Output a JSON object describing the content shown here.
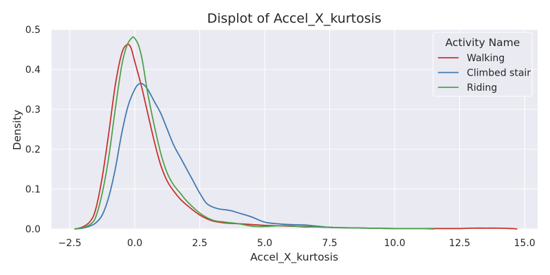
{
  "colors": {
    "plot_bg": "#EAEAF2",
    "grid": "#FFFFFF",
    "text": "#262626"
  },
  "chart_data": {
    "type": "line",
    "title": "Displot of Accel_X_kurtosis",
    "xlabel": "Accel_X_kurtosis",
    "ylabel": "Density",
    "xlim": [
      -3.2,
      15.5
    ],
    "ylim": [
      0,
      0.5
    ],
    "xticks": [
      -2.5,
      0.0,
      2.5,
      5.0,
      7.5,
      10.0,
      12.5,
      15.0
    ],
    "xtick_labels": [
      "−2.5",
      "0.0",
      "2.5",
      "5.0",
      "7.5",
      "10.0",
      "12.5",
      "15.0"
    ],
    "yticks": [
      0.0,
      0.1,
      0.2,
      0.3,
      0.4,
      0.5
    ],
    "ytick_labels": [
      "0.0",
      "0.1",
      "0.2",
      "0.3",
      "0.4",
      "0.5"
    ],
    "grid": true,
    "legend": {
      "title": "Activity Name",
      "placement": "top-right"
    },
    "series": [
      {
        "name": "Walking",
        "color": "#C8302C",
        "x": [
          -2.3,
          -2.0,
          -1.7,
          -1.5,
          -1.25,
          -1.0,
          -0.75,
          -0.5,
          -0.3,
          -0.15,
          0.0,
          0.25,
          0.5,
          0.75,
          1.0,
          1.25,
          1.5,
          1.75,
          2.0,
          2.5,
          3.0,
          3.5,
          4.0,
          4.5,
          5.0,
          5.5,
          6.0,
          6.5,
          7.0,
          7.5,
          8.0,
          9.0,
          10.0,
          11.0,
          12.0,
          12.5,
          13.0,
          13.5,
          14.0,
          14.5,
          14.7
        ],
        "y": [
          0.0,
          0.005,
          0.02,
          0.05,
          0.13,
          0.24,
          0.36,
          0.44,
          0.462,
          0.455,
          0.42,
          0.36,
          0.29,
          0.22,
          0.16,
          0.12,
          0.095,
          0.075,
          0.06,
          0.035,
          0.02,
          0.015,
          0.013,
          0.011,
          0.009,
          0.008,
          0.007,
          0.006,
          0.005,
          0.004,
          0.003,
          0.002,
          0.001,
          0.001,
          0.001,
          0.001,
          0.002,
          0.002,
          0.002,
          0.001,
          0.0
        ]
      },
      {
        "name": "Climbed stair",
        "color": "#3F79B0",
        "x": [
          -2.3,
          -2.0,
          -1.7,
          -1.5,
          -1.25,
          -1.0,
          -0.75,
          -0.5,
          -0.25,
          0.0,
          0.15,
          0.3,
          0.5,
          0.75,
          1.0,
          1.25,
          1.5,
          1.75,
          2.0,
          2.25,
          2.5,
          2.75,
          3.0,
          3.25,
          3.5,
          3.75,
          4.0,
          4.5,
          5.0,
          5.5,
          6.0,
          6.5,
          7.0,
          7.5,
          8.0,
          9.0,
          10.0,
          11.0,
          11.5
        ],
        "y": [
          0.0,
          0.002,
          0.008,
          0.015,
          0.035,
          0.08,
          0.15,
          0.24,
          0.31,
          0.35,
          0.363,
          0.364,
          0.35,
          0.32,
          0.29,
          0.25,
          0.21,
          0.18,
          0.15,
          0.12,
          0.09,
          0.065,
          0.055,
          0.05,
          0.048,
          0.045,
          0.04,
          0.03,
          0.017,
          0.013,
          0.011,
          0.01,
          0.007,
          0.004,
          0.003,
          0.002,
          0.001,
          0.001,
          0.0
        ]
      },
      {
        "name": "Riding",
        "color": "#4EA04A",
        "x": [
          -2.3,
          -2.0,
          -1.7,
          -1.5,
          -1.25,
          -1.0,
          -0.75,
          -0.5,
          -0.3,
          -0.1,
          0.0,
          0.15,
          0.3,
          0.5,
          0.75,
          1.0,
          1.25,
          1.5,
          1.75,
          2.0,
          2.5,
          3.0,
          3.5,
          4.0,
          4.5,
          5.0,
          5.5,
          6.0,
          6.5,
          7.0,
          7.5,
          8.0,
          9.0,
          10.0,
          11.0,
          11.5
        ],
        "y": [
          0.0,
          0.003,
          0.012,
          0.03,
          0.09,
          0.18,
          0.3,
          0.41,
          0.46,
          0.48,
          0.478,
          0.46,
          0.42,
          0.34,
          0.26,
          0.19,
          0.14,
          0.11,
          0.09,
          0.07,
          0.04,
          0.022,
          0.017,
          0.013,
          0.007,
          0.006,
          0.008,
          0.008,
          0.005,
          0.005,
          0.004,
          0.003,
          0.002,
          0.001,
          0.001,
          0.0
        ]
      }
    ]
  }
}
